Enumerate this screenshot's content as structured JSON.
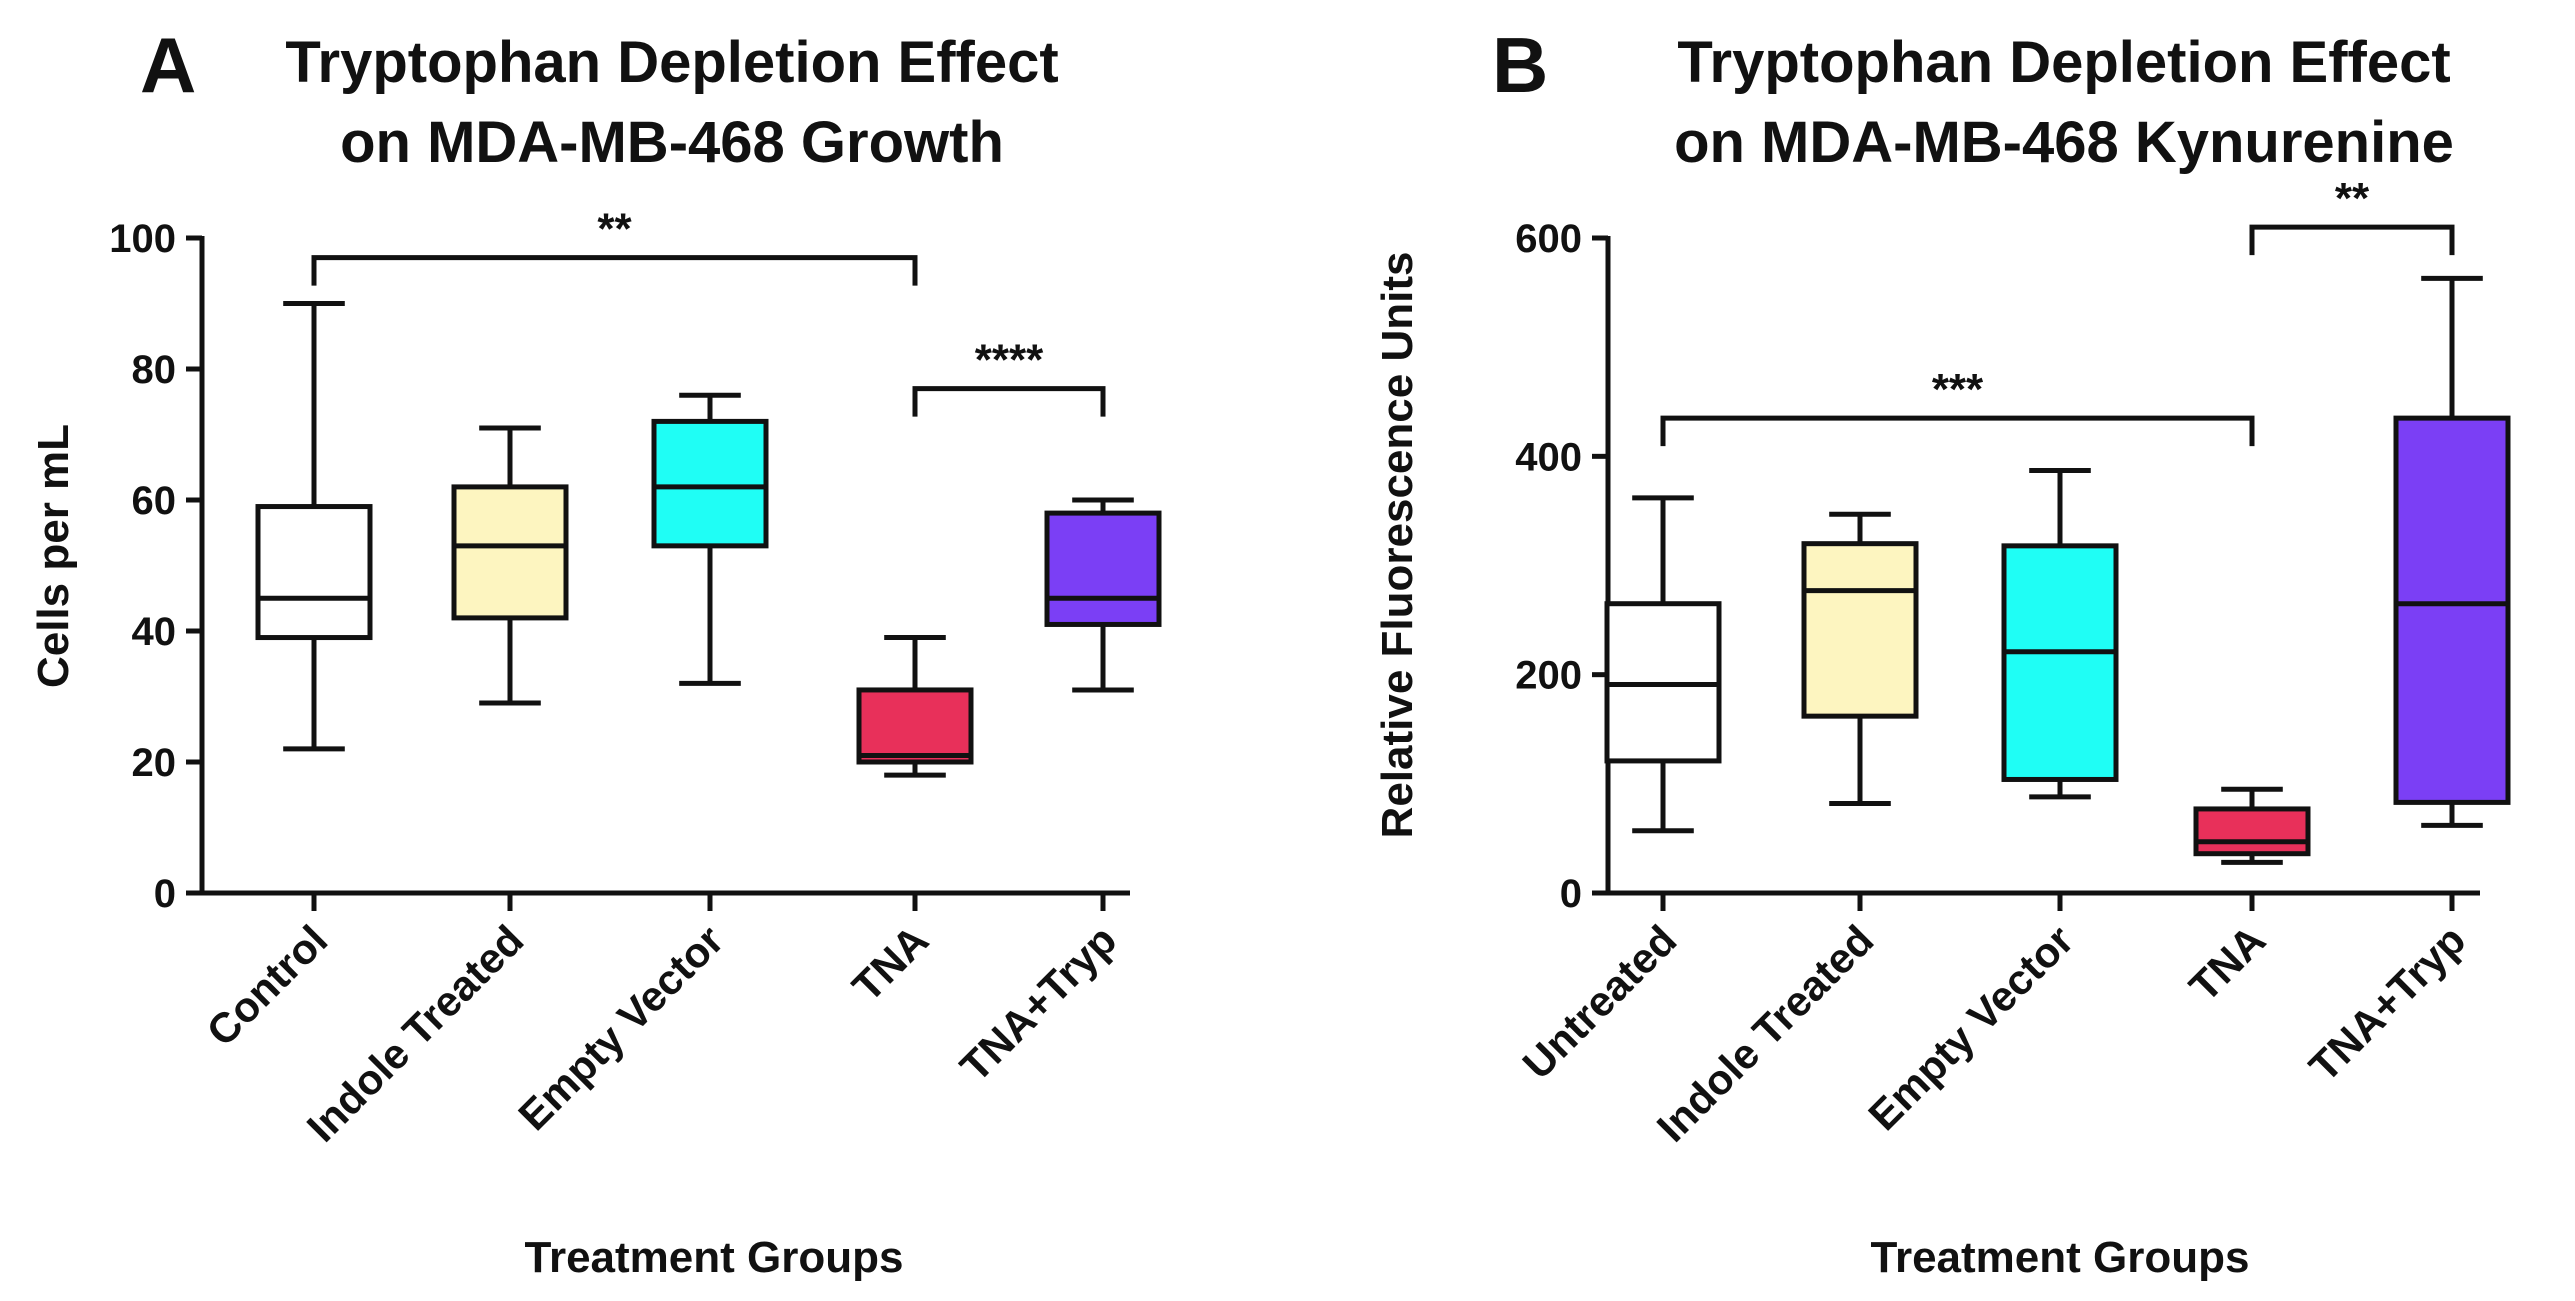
{
  "chart_data": [
    {
      "type": "box",
      "panel_letter": "A",
      "title": [
        "Tryptophan Depletion Effect",
        "on MDA-MB-468 Growth"
      ],
      "xlabel": "Treatment Groups",
      "ylabel": "Cells per mL",
      "ylim": [
        0,
        100
      ],
      "yticks": [
        0,
        20,
        40,
        60,
        80,
        100
      ],
      "categories": [
        "Control",
        "Indole Treated",
        "Empty Vector",
        "TNA",
        "TNA+Tryp"
      ],
      "colors": [
        "#ffffff",
        "#fdf5c0",
        "#1ffef5",
        "#e8305a",
        "#7b3ff5"
      ],
      "boxes": [
        {
          "min": 22,
          "q1": 39,
          "median": 45,
          "q3": 59,
          "max": 90
        },
        {
          "min": 29,
          "q1": 42,
          "median": 53,
          "q3": 62,
          "max": 71
        },
        {
          "min": 32,
          "q1": 53,
          "median": 62,
          "q3": 72,
          "max": 76
        },
        {
          "min": 18,
          "q1": 20,
          "median": 21,
          "q3": 31,
          "max": 39
        },
        {
          "min": 31,
          "q1": 41,
          "median": 45,
          "q3": 58,
          "max": 60
        }
      ],
      "significance": [
        {
          "from": 0,
          "to": 3,
          "y": 97,
          "label": "**"
        },
        {
          "from": 3,
          "to": 4,
          "y": 77,
          "label": "****"
        }
      ]
    },
    {
      "type": "box",
      "panel_letter": "B",
      "title": [
        "Tryptophan Depletion Effect",
        "on MDA-MB-468 Kynurenine"
      ],
      "xlabel": "Treatment Groups",
      "ylabel": "Relative Fluorescence Units",
      "ylim": [
        0,
        600
      ],
      "yticks": [
        0,
        200,
        400,
        600
      ],
      "categories": [
        "Untreated",
        "Indole Treated",
        "Empty Vector",
        "TNA",
        "TNA+Tryp"
      ],
      "colors": [
        "#ffffff",
        "#fdf5c0",
        "#1ffef5",
        "#e8305a",
        "#7b3ff5"
      ],
      "boxes": [
        {
          "min": 57,
          "q1": 121,
          "median": 191,
          "q3": 265,
          "max": 362
        },
        {
          "min": 82,
          "q1": 162,
          "median": 277,
          "q3": 320,
          "max": 347
        },
        {
          "min": 88,
          "q1": 104,
          "median": 221,
          "q3": 318,
          "max": 387
        },
        {
          "min": 28,
          "q1": 36,
          "median": 47,
          "q3": 77,
          "max": 95
        },
        {
          "min": 62,
          "q1": 83,
          "median": 265,
          "q3": 435,
          "max": 563
        }
      ],
      "significance": [
        {
          "from": 0,
          "to": 3,
          "y": 435,
          "label": "***"
        },
        {
          "from": 3,
          "to": 4,
          "y": 610,
          "label": "**"
        }
      ]
    }
  ]
}
